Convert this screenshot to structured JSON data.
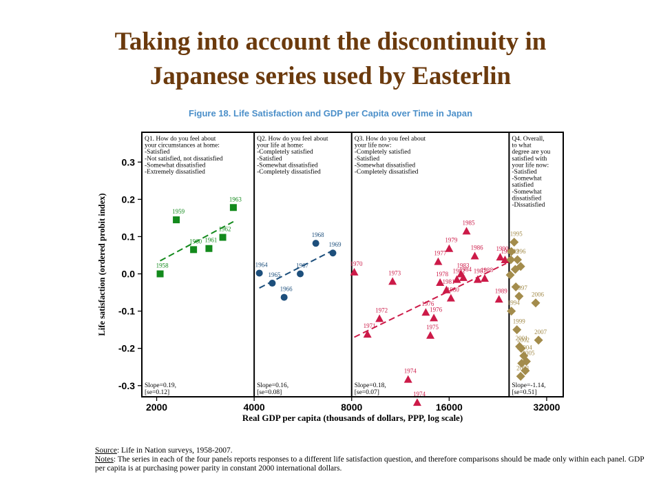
{
  "slide_title_line1": "Taking into account the discontinuity in",
  "slide_title_line2": "Japanese series used by Easterlin",
  "colors": {
    "title": "#6b3a0d",
    "figure_title": "#4b8fc9",
    "q1": "#138a1c",
    "q2": "#1d4f7c",
    "q3": "#cc1a48",
    "q4": "#a38c4c"
  },
  "chart_data": {
    "type": "scatter",
    "title": "Figure 18. Life Satisfaction and GDP per Capita over Time in Japan",
    "xlabel": "Real GDP per capita (thousands of dollars, PPP, log scale)",
    "ylabel": "Life satisfaction (ordered probit index)",
    "x_scale": "log",
    "x_ticks": [
      "2000",
      "4000",
      "8000",
      "16000",
      "32000"
    ],
    "y_ticks": [
      "0.3",
      "0.2",
      "0.1",
      "0.0",
      "-0.1",
      "-0.2",
      "-0.3"
    ],
    "ylim": [
      -0.33,
      0.38
    ],
    "xlim": [
      1800,
      36000
    ],
    "panel_dividers_x": [
      4000,
      8000,
      24500
    ],
    "grid": false,
    "panels": [
      {
        "question": [
          "Q1. How do you feel about",
          "your circumstances at home:",
          "-Satisfied",
          "-Not satisfied, not dissatisfied",
          "-Somewhat dissatisfied",
          "-Extremely dissatisfied"
        ],
        "slope": "Slope=0.19,",
        "se": "[se=0.12]",
        "marker": "square",
        "color": "#138a1c",
        "points": [
          {
            "label": "1958",
            "x": 2050,
            "y": 0.0
          },
          {
            "label": "1959",
            "x": 2300,
            "y": 0.145
          },
          {
            "label": "1960",
            "x": 2600,
            "y": 0.065
          },
          {
            "label": "1961",
            "x": 2900,
            "y": 0.068
          },
          {
            "label": "1962",
            "x": 3200,
            "y": 0.098
          },
          {
            "label": "1963",
            "x": 3450,
            "y": 0.178
          }
        ],
        "fit": [
          [
            2050,
            0.035
          ],
          [
            3450,
            0.14
          ]
        ]
      },
      {
        "question": [
          "Q2. How do you feel about",
          "your life at home:",
          "-Completely satisfied",
          "-Satisfied",
          "-Somewhat dissatisfied",
          "-Completely dissatisfied"
        ],
        "slope": "Slope=0.16,",
        "se": "[se=0.08]",
        "marker": "circle",
        "color": "#1d4f7c",
        "points": [
          {
            "label": "1964",
            "x": 4150,
            "y": 0.002
          },
          {
            "label": "1965",
            "x": 4550,
            "y": -0.025
          },
          {
            "label": "1966",
            "x": 4950,
            "y": -0.063
          },
          {
            "label": "1967",
            "x": 5550,
            "y": 0.0
          },
          {
            "label": "1968",
            "x": 6200,
            "y": 0.082
          },
          {
            "label": "1969",
            "x": 7000,
            "y": 0.056
          }
        ],
        "fit": [
          [
            4150,
            -0.038
          ],
          [
            7000,
            0.063
          ]
        ]
      },
      {
        "question": [
          "Q3. How do you feel about",
          "your life now:",
          "-Completely satisfied",
          "-Satisfied",
          "-Somewhat dissatisfied",
          "-Completely dissatisfied"
        ],
        "slope": "Slope=0.18,",
        "se": "[se=0.07]",
        "marker": "triangle",
        "color": "#cc1a48",
        "points": [
          {
            "label": "1970",
            "x": 8150,
            "y": 0.005
          },
          {
            "label": "1971",
            "x": 8950,
            "y": -0.162
          },
          {
            "label": "1972",
            "x": 9750,
            "y": -0.12
          },
          {
            "label": "1973",
            "x": 10700,
            "y": -0.02
          },
          {
            "label": "1974",
            "x": 11950,
            "y": -0.283
          },
          {
            "label": "1974",
            "x": 12750,
            "y": -0.345
          },
          {
            "label": "1975",
            "x": 14000,
            "y": -0.165
          },
          {
            "label": "1976",
            "x": 14350,
            "y": -0.118
          },
          {
            "label": "1976",
            "x": 13550,
            "y": -0.103
          },
          {
            "label": "1977",
            "x": 14800,
            "y": 0.033
          },
          {
            "label": "1978",
            "x": 15000,
            "y": -0.023
          },
          {
            "label": "1979",
            "x": 16000,
            "y": 0.068
          },
          {
            "label": "1980",
            "x": 16200,
            "y": -0.065
          },
          {
            "label": "1981",
            "x": 15700,
            "y": -0.043
          },
          {
            "label": "1982",
            "x": 16900,
            "y": -0.015
          },
          {
            "label": "1983",
            "x": 17400,
            "y": 0.0
          },
          {
            "label": "1984",
            "x": 17700,
            "y": -0.01
          },
          {
            "label": "1985",
            "x": 18100,
            "y": 0.115
          },
          {
            "label": "1986",
            "x": 19200,
            "y": 0.048
          },
          {
            "label": "1987",
            "x": 19600,
            "y": -0.015
          },
          {
            "label": "1988",
            "x": 20600,
            "y": -0.012
          },
          {
            "label": "1989",
            "x": 22800,
            "y": -0.068
          },
          {
            "label": "1990",
            "x": 23000,
            "y": 0.045
          },
          {
            "label": "1991",
            "x": 23800,
            "y": 0.038
          }
        ],
        "fit": [
          [
            8150,
            -0.17
          ],
          [
            24000,
            0.028
          ]
        ]
      },
      {
        "question": [
          "Q4. Overall,",
          "to what",
          "degree are you",
          "satisfied with",
          "your life now:",
          "-Satisfied",
          "-Somewhat",
          "satisfied",
          "-Somewhat",
          "dissatisfied",
          "-Dissatisfied"
        ],
        "slope": "Slope=-1.14,",
        "se": "[se=0.51]",
        "marker": "diamond",
        "color": "#a38c4c",
        "points": [
          {
            "label": "1992",
            "x": 24800,
            "y": 0.038
          },
          {
            "label": "1994",
            "x": 24900,
            "y": -0.1
          },
          {
            "label": "1995",
            "x": 25400,
            "y": 0.085
          },
          {
            "label": "1996",
            "x": 26000,
            "y": 0.038
          },
          {
            "label": "1997",
            "x": 26300,
            "y": -0.06
          },
          {
            "label": "1999",
            "x": 25900,
            "y": -0.15
          },
          {
            "label": "2001",
            "x": 26400,
            "y": -0.195
          },
          {
            "label": "2002",
            "x": 26700,
            "y": -0.2
          },
          {
            "label": "2003",
            "x": 26600,
            "y": -0.275
          },
          {
            "label": "2004",
            "x": 27200,
            "y": -0.22
          },
          {
            "label": "2005",
            "x": 27700,
            "y": -0.235
          },
          {
            "label": "2006",
            "x": 29600,
            "y": -0.078
          },
          {
            "label": "2007",
            "x": 30200,
            "y": -0.178
          }
        ],
        "extra_markers": [
          {
            "x": 24700,
            "y": -0.003
          },
          {
            "x": 25600,
            "y": 0.012
          },
          {
            "x": 26600,
            "y": 0.02
          },
          {
            "x": 24900,
            "y": 0.06
          },
          {
            "x": 25700,
            "y": -0.035
          },
          {
            "x": 26800,
            "y": -0.24
          },
          {
            "x": 27500,
            "y": -0.26
          }
        ]
      }
    ]
  },
  "notes": {
    "source_label": "Source",
    "source_text": ": Life in Nation surveys, 1958-2007.",
    "notes_label": "Notes",
    "notes_text": ": The series in each of the four panels reports responses to a different life satisfaction question, and therefore comparisons should be made only within each panel. GDP per capita is at purchasing power parity in constant 2000 international dollars."
  }
}
